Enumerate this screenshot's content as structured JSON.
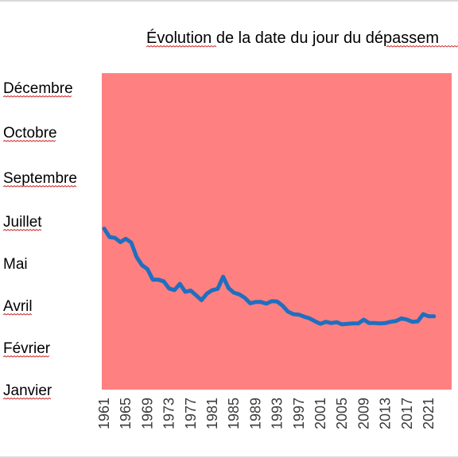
{
  "chart_data": {
    "type": "line",
    "title": "Évolution de la date du jour du dépassem",
    "xlabel": "",
    "ylabel": "",
    "x_tick_labels": [
      "1961",
      "1965",
      "1969",
      "1973",
      "1977",
      "1981",
      "1985",
      "1989",
      "1993",
      "1997",
      "2001",
      "2005",
      "2009",
      "2013",
      "2017",
      "2021"
    ],
    "y_tick_labels": [
      "Janvier",
      "Février",
      "Avril",
      "Mai",
      "Juillet",
      "Septembre",
      "Octobre",
      "Décembre"
    ],
    "xlim": [
      1961,
      2022
    ],
    "ylim": [
      0,
      7
    ],
    "colors": {
      "plot_background": "#ff8080",
      "line": "#1f6fc0"
    },
    "grid": false,
    "legend": "none",
    "series": [
      {
        "x": [
          1961,
          1962,
          1963,
          1964,
          1965,
          1966,
          1967,
          1968,
          1969,
          1970,
          1971,
          1972,
          1973,
          1974,
          1975,
          1976,
          1977,
          1978,
          1979,
          1980,
          1981,
          1982,
          1983,
          1984,
          1985,
          1986,
          1987,
          1988,
          1989,
          1990,
          1991,
          1992,
          1993,
          1994,
          1995,
          1996,
          1997,
          1998,
          1999,
          2000,
          2001,
          2002,
          2003,
          2004,
          2005,
          2006,
          2007,
          2008,
          2009,
          2010,
          2011,
          2012,
          2013,
          2014,
          2015,
          2016,
          2017,
          2018,
          2019,
          2020,
          2021,
          2022
        ],
        "values": [
          3.82,
          3.62,
          3.6,
          3.5,
          3.58,
          3.49,
          3.15,
          2.95,
          2.86,
          2.61,
          2.61,
          2.57,
          2.4,
          2.36,
          2.51,
          2.32,
          2.35,
          2.24,
          2.12,
          2.28,
          2.36,
          2.39,
          2.68,
          2.41,
          2.3,
          2.26,
          2.18,
          2.05,
          2.08,
          2.08,
          2.04,
          2.1,
          2.09,
          1.99,
          1.85,
          1.79,
          1.78,
          1.73,
          1.69,
          1.62,
          1.56,
          1.61,
          1.58,
          1.6,
          1.55,
          1.56,
          1.57,
          1.57,
          1.66,
          1.58,
          1.58,
          1.57,
          1.58,
          1.61,
          1.63,
          1.69,
          1.66,
          1.61,
          1.62,
          1.79,
          1.74,
          1.74
        ]
      }
    ]
  }
}
